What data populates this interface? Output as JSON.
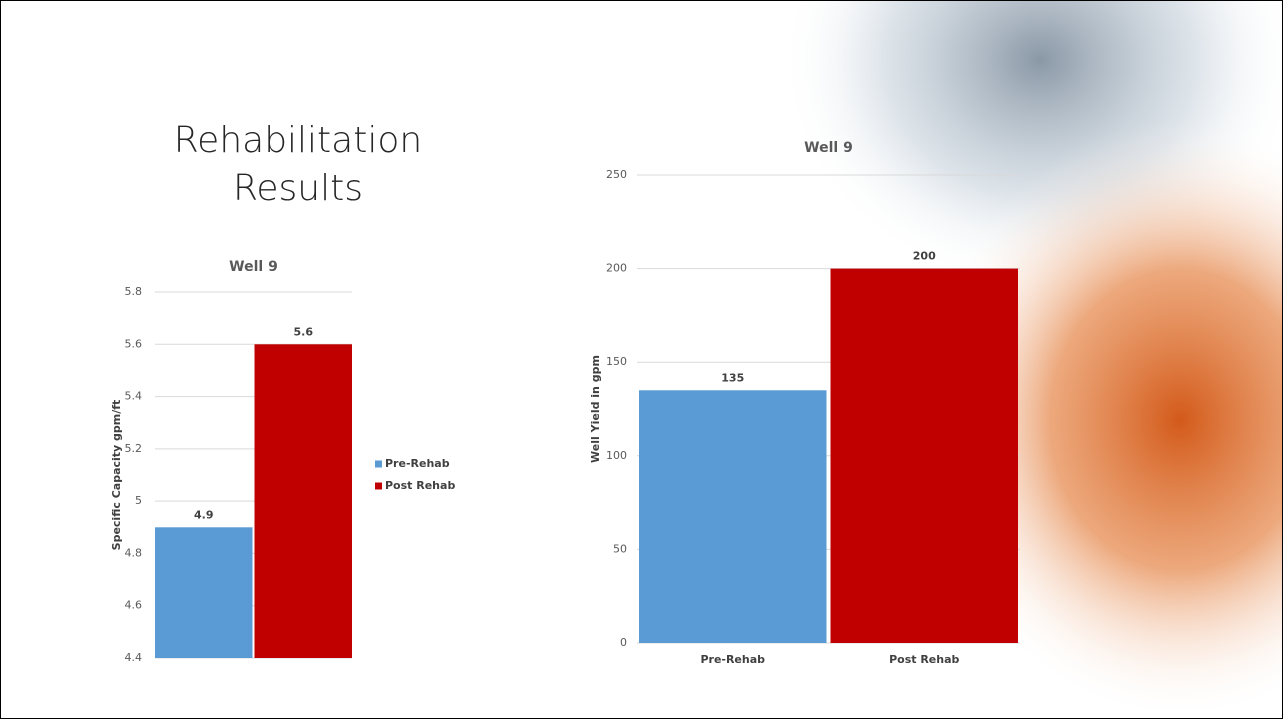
{
  "slide_title": "Rehabilitation Results",
  "chart_data": [
    {
      "type": "bar",
      "title": "Well 9",
      "y_label": "Specific Capacity gpm/ft",
      "categories": [
        null
      ],
      "series": [
        {
          "name": "Pre-Rehab",
          "color": "#5b9bd5",
          "values": [
            4.9
          ]
        },
        {
          "name": "Post Rehab",
          "color": "#c00000",
          "values": [
            5.6
          ]
        }
      ],
      "ylim": [
        4.4,
        5.8
      ],
      "yticks": [
        4.4,
        4.6,
        4.8,
        5,
        5.2,
        5.4,
        5.6,
        5.8
      ],
      "grid": true,
      "legend": "right"
    },
    {
      "type": "bar",
      "title": "Well 9",
      "y_label": "Well Yield in gpm",
      "categories": [
        "Pre-Rehab",
        "Post Rehab"
      ],
      "values": [
        135,
        200
      ],
      "colors": [
        "#5b9bd5",
        "#c00000"
      ],
      "ylim": [
        0,
        250
      ],
      "yticks": [
        0,
        50,
        100,
        150,
        200,
        250
      ],
      "grid": true
    }
  ]
}
